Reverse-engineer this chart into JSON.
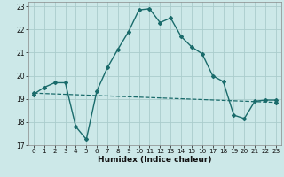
{
  "xlabel": "Humidex (Indice chaleur)",
  "ylabel": "",
  "background_color": "#cce8e8",
  "grid_color": "#aacccc",
  "line_color": "#1a6b6b",
  "xlim": [
    -0.5,
    23.5
  ],
  "ylim": [
    17,
    23.2
  ],
  "yticks": [
    17,
    18,
    19,
    20,
    21,
    22,
    23
  ],
  "xticks": [
    0,
    1,
    2,
    3,
    4,
    5,
    6,
    7,
    8,
    9,
    10,
    11,
    12,
    13,
    14,
    15,
    16,
    17,
    18,
    19,
    20,
    21,
    22,
    23
  ],
  "line1_x": [
    0,
    1,
    2,
    3,
    4,
    5,
    6,
    7,
    8,
    9,
    10,
    11,
    12,
    13,
    14,
    15,
    16,
    17,
    18,
    19,
    20,
    21,
    22,
    23
  ],
  "line1_y": [
    19.2,
    19.5,
    19.7,
    19.7,
    17.8,
    17.25,
    19.35,
    20.35,
    21.15,
    21.9,
    22.85,
    22.9,
    22.3,
    22.5,
    21.7,
    21.25,
    20.95,
    20.0,
    19.75,
    18.3,
    18.15,
    18.9,
    18.95,
    18.95
  ],
  "line2_x": [
    0,
    23
  ],
  "line2_y": [
    19.25,
    18.85
  ],
  "line1_style": "-",
  "line2_style": "--"
}
